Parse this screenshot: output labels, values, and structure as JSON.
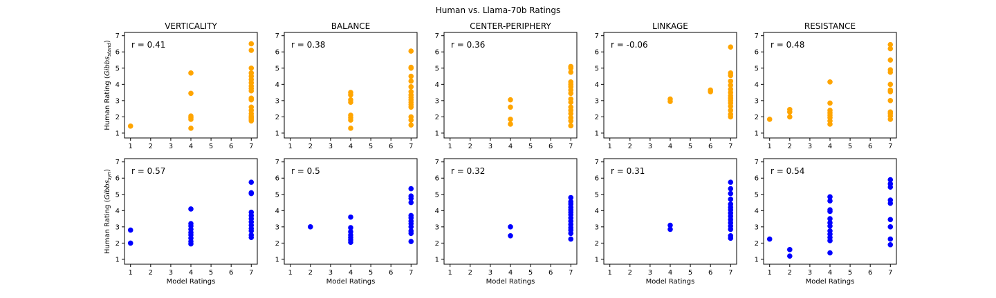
{
  "figure_title": "Human vs. Llama-70b Ratings",
  "chart_data": [
    {
      "type": "scatter",
      "row": 0,
      "col": 0,
      "title": "VERTICALITY",
      "annotation": "r = 0.41",
      "color": "#FFA500",
      "ylabel": "Human Rating (Gibbs_stand)",
      "xlabel": "",
      "xlim": [
        0.7,
        7.3
      ],
      "ylim": [
        0.7,
        7.2
      ],
      "xticks": [
        1,
        2,
        3,
        4,
        5,
        6,
        7
      ],
      "yticks": [
        1,
        2,
        3,
        4,
        5,
        6,
        7
      ],
      "points": [
        [
          1,
          1.43
        ],
        [
          4,
          1.3
        ],
        [
          4,
          1.85
        ],
        [
          4,
          1.95
        ],
        [
          4,
          2.05
        ],
        [
          4,
          3.45
        ],
        [
          4,
          4.7
        ],
        [
          7,
          1.75
        ],
        [
          7,
          1.85
        ],
        [
          7,
          1.95
        ],
        [
          7,
          2.05
        ],
        [
          7,
          2.2
        ],
        [
          7,
          2.4
        ],
        [
          7,
          2.6
        ],
        [
          7,
          3.05
        ],
        [
          7,
          3.15
        ],
        [
          7,
          3.6
        ],
        [
          7,
          3.75
        ],
        [
          7,
          3.9
        ],
        [
          7,
          4.1
        ],
        [
          7,
          4.3
        ],
        [
          7,
          4.5
        ],
        [
          7,
          4.7
        ],
        [
          7,
          5.0
        ],
        [
          7,
          6.1
        ],
        [
          7,
          6.5
        ]
      ]
    },
    {
      "type": "scatter",
      "row": 0,
      "col": 1,
      "title": "BALANCE",
      "annotation": "r = 0.38",
      "color": "#FFA500",
      "ylabel": "",
      "xlabel": "",
      "xlim": [
        0.7,
        7.3
      ],
      "ylim": [
        0.7,
        7.2
      ],
      "xticks": [
        1,
        2,
        3,
        4,
        5,
        6,
        7
      ],
      "yticks": [
        1,
        2,
        3,
        4,
        5,
        6,
        7
      ],
      "points": [
        [
          4,
          1.3
        ],
        [
          4,
          1.8
        ],
        [
          4,
          1.95
        ],
        [
          4,
          2.1
        ],
        [
          4,
          2.9
        ],
        [
          4,
          3.05
        ],
        [
          4,
          3.35
        ],
        [
          4,
          3.5
        ],
        [
          7,
          1.5
        ],
        [
          7,
          1.8
        ],
        [
          7,
          2.0
        ],
        [
          7,
          2.6
        ],
        [
          7,
          2.75
        ],
        [
          7,
          2.9
        ],
        [
          7,
          3.05
        ],
        [
          7,
          3.2
        ],
        [
          7,
          3.35
        ],
        [
          7,
          3.55
        ],
        [
          7,
          3.85
        ],
        [
          7,
          4.2
        ],
        [
          7,
          4.5
        ],
        [
          7,
          5.0
        ],
        [
          7,
          5.05
        ],
        [
          7,
          6.05
        ]
      ]
    },
    {
      "type": "scatter",
      "row": 0,
      "col": 2,
      "title": "CENTER-PERIPHERY",
      "annotation": "r = 0.36",
      "color": "#FFA500",
      "ylabel": "",
      "xlabel": "",
      "xlim": [
        0.7,
        7.3
      ],
      "ylim": [
        0.7,
        7.2
      ],
      "xticks": [
        1,
        2,
        3,
        4,
        5,
        6,
        7
      ],
      "yticks": [
        1,
        2,
        3,
        4,
        5,
        6,
        7
      ],
      "points": [
        [
          4,
          1.55
        ],
        [
          4,
          1.85
        ],
        [
          4,
          2.6
        ],
        [
          4,
          3.05
        ],
        [
          7,
          1.45
        ],
        [
          7,
          1.75
        ],
        [
          7,
          1.95
        ],
        [
          7,
          2.2
        ],
        [
          7,
          2.4
        ],
        [
          7,
          2.6
        ],
        [
          7,
          2.9
        ],
        [
          7,
          3.1
        ],
        [
          7,
          3.45
        ],
        [
          7,
          3.65
        ],
        [
          7,
          3.85
        ],
        [
          7,
          4.0
        ],
        [
          7,
          4.15
        ],
        [
          7,
          4.75
        ],
        [
          7,
          5.0
        ],
        [
          7,
          5.1
        ]
      ]
    },
    {
      "type": "scatter",
      "row": 0,
      "col": 3,
      "title": "LINKAGE",
      "annotation": "r = -0.06",
      "color": "#FFA500",
      "ylabel": "",
      "xlabel": "",
      "xlim": [
        0.7,
        7.3
      ],
      "ylim": [
        0.7,
        7.2
      ],
      "xticks": [
        1,
        2,
        3,
        4,
        5,
        6,
        7
      ],
      "yticks": [
        1,
        2,
        3,
        4,
        5,
        6,
        7
      ],
      "points": [
        [
          4,
          2.95
        ],
        [
          4,
          3.1
        ],
        [
          6,
          3.55
        ],
        [
          6,
          3.65
        ],
        [
          7,
          2.0
        ],
        [
          7,
          2.15
        ],
        [
          7,
          2.4
        ],
        [
          7,
          2.65
        ],
        [
          7,
          2.85
        ],
        [
          7,
          3.0
        ],
        [
          7,
          3.15
        ],
        [
          7,
          3.3
        ],
        [
          7,
          3.5
        ],
        [
          7,
          3.7
        ],
        [
          7,
          3.95
        ],
        [
          7,
          4.2
        ],
        [
          7,
          4.55
        ],
        [
          7,
          4.7
        ],
        [
          7,
          6.3
        ]
      ]
    },
    {
      "type": "scatter",
      "row": 0,
      "col": 4,
      "title": "RESISTANCE",
      "annotation": "r = 0.48",
      "color": "#FFA500",
      "ylabel": "",
      "xlabel": "",
      "xlim": [
        0.7,
        7.3
      ],
      "ylim": [
        0.7,
        7.2
      ],
      "xticks": [
        1,
        2,
        3,
        4,
        5,
        6,
        7
      ],
      "yticks": [
        1,
        2,
        3,
        4,
        5,
        6,
        7
      ],
      "points": [
        [
          1,
          1.85
        ],
        [
          2,
          2.0
        ],
        [
          2,
          2.3
        ],
        [
          2,
          2.45
        ],
        [
          4,
          1.55
        ],
        [
          4,
          1.75
        ],
        [
          4,
          1.95
        ],
        [
          4,
          2.1
        ],
        [
          4,
          2.25
        ],
        [
          4,
          2.4
        ],
        [
          4,
          2.85
        ],
        [
          4,
          4.15
        ],
        [
          7,
          1.85
        ],
        [
          7,
          2.05
        ],
        [
          7,
          2.2
        ],
        [
          7,
          2.3
        ],
        [
          7,
          3.0
        ],
        [
          7,
          3.55
        ],
        [
          7,
          3.65
        ],
        [
          7,
          4.0
        ],
        [
          7,
          4.75
        ],
        [
          7,
          4.9
        ],
        [
          7,
          5.5
        ],
        [
          7,
          6.2
        ],
        [
          7,
          6.45
        ]
      ]
    },
    {
      "type": "scatter",
      "row": 1,
      "col": 0,
      "title": "",
      "annotation": "r = 0.57",
      "color": "#0000FF",
      "ylabel": "Human Rating (Gibbs_syn)",
      "xlabel": "Model Ratings",
      "xlim": [
        0.7,
        7.3
      ],
      "ylim": [
        0.7,
        7.2
      ],
      "xticks": [
        1,
        2,
        3,
        4,
        5,
        6,
        7
      ],
      "yticks": [
        1,
        2,
        3,
        4,
        5,
        6,
        7
      ],
      "points": [
        [
          1,
          2.0
        ],
        [
          1,
          2.8
        ],
        [
          4,
          1.95
        ],
        [
          4,
          2.1
        ],
        [
          4,
          2.3
        ],
        [
          4,
          2.5
        ],
        [
          4,
          2.65
        ],
        [
          4,
          2.85
        ],
        [
          4,
          3.05
        ],
        [
          4,
          3.2
        ],
        [
          4,
          4.1
        ],
        [
          7,
          2.35
        ],
        [
          7,
          2.5
        ],
        [
          7,
          2.75
        ],
        [
          7,
          2.9
        ],
        [
          7,
          3.1
        ],
        [
          7,
          3.3
        ],
        [
          7,
          3.5
        ],
        [
          7,
          3.7
        ],
        [
          7,
          3.9
        ],
        [
          7,
          5.05
        ],
        [
          7,
          5.1
        ],
        [
          7,
          5.75
        ]
      ]
    },
    {
      "type": "scatter",
      "row": 1,
      "col": 1,
      "title": "",
      "annotation": "r = 0.5",
      "color": "#0000FF",
      "ylabel": "",
      "xlabel": "Model Ratings",
      "xlim": [
        0.7,
        7.3
      ],
      "ylim": [
        0.7,
        7.2
      ],
      "xticks": [
        1,
        2,
        3,
        4,
        5,
        6,
        7
      ],
      "yticks": [
        1,
        2,
        3,
        4,
        5,
        6,
        7
      ],
      "points": [
        [
          2,
          3.0
        ],
        [
          4,
          2.05
        ],
        [
          4,
          2.2
        ],
        [
          4,
          2.35
        ],
        [
          4,
          2.5
        ],
        [
          4,
          2.7
        ],
        [
          4,
          2.95
        ],
        [
          4,
          3.6
        ],
        [
          7,
          2.1
        ],
        [
          7,
          2.6
        ],
        [
          7,
          2.75
        ],
        [
          7,
          3.0
        ],
        [
          7,
          3.2
        ],
        [
          7,
          3.35
        ],
        [
          7,
          3.55
        ],
        [
          7,
          3.7
        ],
        [
          7,
          4.5
        ],
        [
          7,
          4.75
        ],
        [
          7,
          4.9
        ],
        [
          7,
          5.35
        ]
      ]
    },
    {
      "type": "scatter",
      "row": 1,
      "col": 2,
      "title": "",
      "annotation": "r = 0.32",
      "color": "#0000FF",
      "ylabel": "",
      "xlabel": "Model Ratings",
      "xlim": [
        0.7,
        7.3
      ],
      "ylim": [
        0.7,
        7.2
      ],
      "xticks": [
        1,
        2,
        3,
        4,
        5,
        6,
        7
      ],
      "yticks": [
        1,
        2,
        3,
        4,
        5,
        6,
        7
      ],
      "points": [
        [
          4,
          2.45
        ],
        [
          4,
          3.0
        ],
        [
          7,
          2.25
        ],
        [
          7,
          2.6
        ],
        [
          7,
          2.8
        ],
        [
          7,
          2.95
        ],
        [
          7,
          3.15
        ],
        [
          7,
          3.35
        ],
        [
          7,
          3.55
        ],
        [
          7,
          3.75
        ],
        [
          7,
          3.9
        ],
        [
          7,
          4.05
        ],
        [
          7,
          4.2
        ],
        [
          7,
          4.4
        ],
        [
          7,
          4.55
        ],
        [
          7,
          4.8
        ]
      ]
    },
    {
      "type": "scatter",
      "row": 1,
      "col": 3,
      "title": "",
      "annotation": "r = 0.31",
      "color": "#0000FF",
      "ylabel": "",
      "xlabel": "Model Ratings",
      "xlim": [
        0.7,
        7.3
      ],
      "ylim": [
        0.7,
        7.2
      ],
      "xticks": [
        1,
        2,
        3,
        4,
        5,
        6,
        7
      ],
      "yticks": [
        1,
        2,
        3,
        4,
        5,
        6,
        7
      ],
      "points": [
        [
          4,
          2.85
        ],
        [
          4,
          3.1
        ],
        [
          7,
          2.3
        ],
        [
          7,
          2.45
        ],
        [
          7,
          2.85
        ],
        [
          7,
          3.05
        ],
        [
          7,
          3.25
        ],
        [
          7,
          3.45
        ],
        [
          7,
          3.65
        ],
        [
          7,
          3.85
        ],
        [
          7,
          4.05
        ],
        [
          7,
          4.2
        ],
        [
          7,
          4.4
        ],
        [
          7,
          4.7
        ],
        [
          7,
          5.05
        ],
        [
          7,
          5.35
        ],
        [
          7,
          5.75
        ]
      ]
    },
    {
      "type": "scatter",
      "row": 1,
      "col": 4,
      "title": "",
      "annotation": "r = 0.54",
      "color": "#0000FF",
      "ylabel": "",
      "xlabel": "Model Ratings",
      "xlim": [
        0.7,
        7.3
      ],
      "ylim": [
        0.7,
        7.2
      ],
      "xticks": [
        1,
        2,
        3,
        4,
        5,
        6,
        7
      ],
      "yticks": [
        1,
        2,
        3,
        4,
        5,
        6,
        7
      ],
      "points": [
        [
          1,
          2.25
        ],
        [
          2,
          1.2
        ],
        [
          2,
          1.6
        ],
        [
          4,
          1.4
        ],
        [
          4,
          2.15
        ],
        [
          4,
          2.35
        ],
        [
          4,
          2.55
        ],
        [
          4,
          2.75
        ],
        [
          4,
          3.05
        ],
        [
          4,
          3.25
        ],
        [
          4,
          3.5
        ],
        [
          4,
          3.95
        ],
        [
          4,
          4.05
        ],
        [
          4,
          4.6
        ],
        [
          4,
          4.85
        ],
        [
          7,
          1.9
        ],
        [
          7,
          2.25
        ],
        [
          7,
          3.0
        ],
        [
          7,
          3.45
        ],
        [
          7,
          4.45
        ],
        [
          7,
          4.65
        ],
        [
          7,
          5.45
        ],
        [
          7,
          5.65
        ],
        [
          7,
          5.9
        ]
      ]
    }
  ]
}
